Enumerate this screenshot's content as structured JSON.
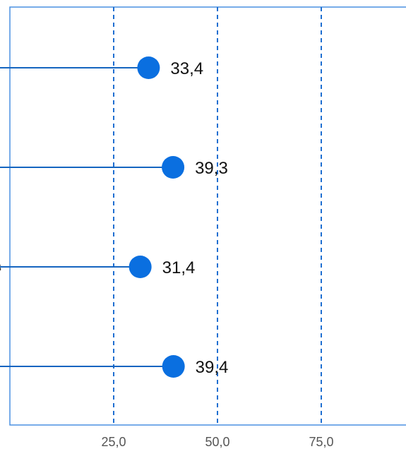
{
  "chart_data": {
    "type": "lollipop",
    "orientation": "horizontal",
    "categories": [
      "",
      "",
      "s",
      ""
    ],
    "values": [
      33.4,
      39.3,
      31.4,
      39.4
    ],
    "value_labels": [
      "33,4",
      "39,3",
      "31,4",
      "39,4"
    ],
    "xlim": [
      0,
      100
    ],
    "x_ticks": [
      25,
      50,
      75
    ],
    "x_tick_labels": [
      "25,0",
      "50,0",
      "75,0"
    ],
    "grid": "vertical-dashed",
    "title": "",
    "xlabel": "",
    "ylabel": ""
  },
  "colors": {
    "accent": "#0a6fe0",
    "stem": "#1565c0",
    "grid": "#1f6fd1",
    "frame": "#4a90e2"
  }
}
